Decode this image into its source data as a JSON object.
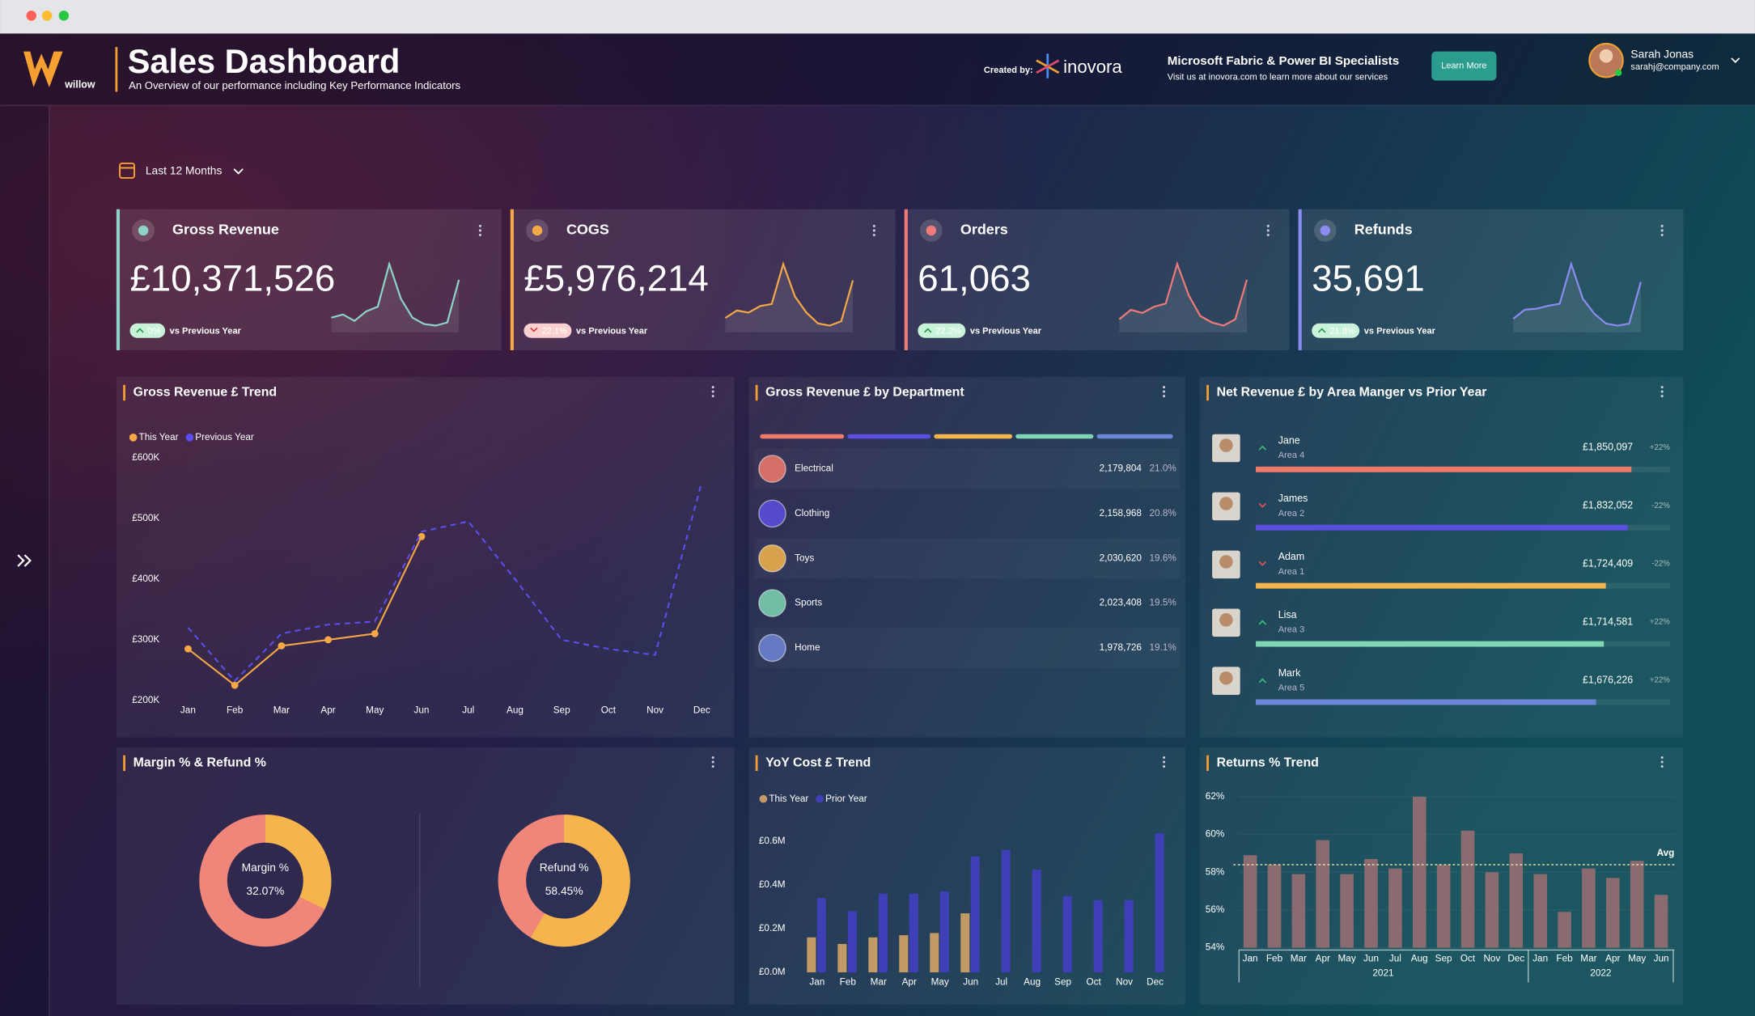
{
  "header": {
    "logo_text": "willow",
    "title": "Sales Dashboard",
    "subtitle": "An Overview of our performance including Key Performance Indicators",
    "created_by": "Created by:",
    "brand": "inovora",
    "promo_title": "Microsoft Fabric & Power BI Specialists",
    "promo_text": "Visit us at inovora.com to learn more about our services",
    "button": "Learn More",
    "user_name": "Sarah Jonas",
    "user_email": "sarahj@company.com"
  },
  "filter": "Last 12 Months",
  "kpis": [
    {
      "title": "Gross Revenue",
      "value": "£10,371,526",
      "change": "0%",
      "trend": "up",
      "note": "vs Previous Year",
      "color": "#8fd3c8",
      "spark": [
        38,
        40,
        36,
        42,
        45,
        72,
        50,
        38,
        34,
        33,
        35,
        62
      ]
    },
    {
      "title": "COGS",
      "value": "£5,976,214",
      "change": "22.1%",
      "trend": "down",
      "note": "vs Previous Year",
      "color": "#f5a845",
      "spark": [
        35,
        42,
        40,
        46,
        48,
        85,
        55,
        40,
        30,
        28,
        32,
        70
      ]
    },
    {
      "title": "Orders",
      "value": "61,063",
      "change": "22.2%",
      "trend": "up",
      "note": "vs Previous Year",
      "color": "#f07a7a",
      "spark": [
        30,
        36,
        34,
        38,
        40,
        65,
        45,
        32,
        28,
        26,
        30,
        55
      ]
    },
    {
      "title": "Refunds",
      "value": "35,691",
      "change": "21.8%",
      "trend": "up",
      "note": "vs Previous Year",
      "color": "#8b8cf0",
      "spark": [
        35,
        44,
        45,
        48,
        50,
        90,
        55,
        40,
        30,
        28,
        30,
        72
      ]
    }
  ],
  "chart_data": [
    {
      "type": "line",
      "title": "Gross Revenue £ Trend",
      "categories": [
        "Jan",
        "Feb",
        "Mar",
        "Apr",
        "May",
        "Jun",
        "Jul",
        "Aug",
        "Sep",
        "Oct",
        "Nov",
        "Dec"
      ],
      "series": [
        {
          "name": "This Year",
          "color": "#f5a845",
          "style": "solid",
          "markers": true,
          "values": [
            285000,
            225000,
            290000,
            300000,
            310000,
            470000,
            null,
            null,
            null,
            null,
            null,
            null
          ]
        },
        {
          "name": "Previous Year",
          "color": "#5b4ff0",
          "style": "dashed",
          "markers": false,
          "values": [
            320000,
            232000,
            310000,
            325000,
            330000,
            478000,
            495000,
            400000,
            300000,
            285000,
            275000,
            560000
          ]
        }
      ],
      "ylim": [
        200000,
        600000
      ],
      "yticks": [
        {
          "value": 200000,
          "label": "£200K"
        },
        {
          "value": 300000,
          "label": "£300K"
        },
        {
          "value": 400000,
          "label": "£400K"
        },
        {
          "value": 500000,
          "label": "£500K"
        },
        {
          "value": 600000,
          "label": "£600K"
        }
      ]
    },
    {
      "type": "list",
      "title": "Gross Revenue £ by Department",
      "categories": [
        "Electrical",
        "Clothing",
        "Toys",
        "Sports",
        "Home"
      ],
      "values": [
        2179804,
        2158968,
        2030620,
        2023408,
        1978726
      ],
      "value_labels": [
        "2,179,804",
        "2,158,968",
        "2,030,620",
        "2,023,408",
        "1,978,726"
      ],
      "shares": [
        21.0,
        20.8,
        19.6,
        19.5,
        19.1
      ],
      "share_labels": [
        "21.0%",
        "20.8%",
        "19.6%",
        "19.5%",
        "19.1%"
      ],
      "colors": [
        "#f07a6a",
        "#5a4fe0",
        "#f5b54c",
        "#7fd6b5",
        "#6e86d6"
      ]
    },
    {
      "type": "hbar",
      "title": "Net Revenue £ by Area Manger vs Prior Year",
      "categories": [
        "Jane",
        "James",
        "Adam",
        "Lisa",
        "Mark"
      ],
      "areas": [
        "Area 4",
        "Area 2",
        "Area 1",
        "Area 3",
        "Area 5"
      ],
      "values": [
        1850097,
        1832052,
        1724409,
        1714581,
        1676226
      ],
      "value_labels": [
        "£1,850,097",
        "£1,832,052",
        "£1,724,409",
        "£1,714,581",
        "£1,676,226"
      ],
      "changes": [
        "+22%",
        "-22%",
        "-22%",
        "+22%",
        "+22%"
      ],
      "trends": [
        "up",
        "down",
        "down",
        "up",
        "up"
      ],
      "colors": [
        "#f07a6a",
        "#5a4fe0",
        "#f5b54c",
        "#7fd6b5",
        "#6e86d6"
      ],
      "xlim": [
        0,
        2040000
      ]
    },
    {
      "type": "donut",
      "title": "Margin % & Refund %",
      "categories": [
        "Margin %",
        "Refund %"
      ],
      "values": [
        32.07,
        58.45
      ],
      "value_labels": [
        "32.07%",
        "58.45%"
      ],
      "color": "#f5b54c",
      "track_color": "#f0857a"
    },
    {
      "type": "bar",
      "title": "YoY Cost £ Trend",
      "categories": [
        "Jan",
        "Feb",
        "Mar",
        "Apr",
        "May",
        "Jun",
        "Jul",
        "Aug",
        "Sep",
        "Oct",
        "Nov",
        "Dec"
      ],
      "series": [
        {
          "name": "This Year",
          "color": "#c29a66",
          "values": [
            160000,
            130000,
            160000,
            170000,
            180000,
            270000,
            null,
            null,
            null,
            null,
            null,
            null
          ]
        },
        {
          "name": "Prior Year",
          "color": "#3f3fb8",
          "values": [
            340000,
            280000,
            360000,
            360000,
            370000,
            530000,
            560000,
            470000,
            350000,
            330000,
            330000,
            636000
          ]
        }
      ],
      "ylim": [
        0,
        640000
      ],
      "yticks": [
        {
          "value": 0,
          "label": "£0.0M"
        },
        {
          "value": 200000,
          "label": "£0.2M"
        },
        {
          "value": 400000,
          "label": "£0.4M"
        },
        {
          "value": 600000,
          "label": "£0.6M"
        }
      ]
    },
    {
      "type": "grouped-bar",
      "title": "Returns % Trend",
      "groups": [
        {
          "name": "2021",
          "categories": [
            "Jan",
            "Feb",
            "Mar",
            "Apr",
            "May",
            "Jun",
            "Jul",
            "Aug",
            "Sep",
            "Oct",
            "Nov",
            "Dec"
          ],
          "values": [
            58.9,
            58.4,
            57.9,
            59.7,
            57.9,
            58.7,
            58.2,
            62.0,
            58.4,
            60.2,
            58.0,
            59.0
          ]
        },
        {
          "name": "2022",
          "categories": [
            "Jan",
            "Feb",
            "Mar",
            "Apr",
            "May",
            "Jun"
          ],
          "values": [
            57.9,
            55.9,
            58.2,
            57.7,
            58.6,
            56.8
          ]
        }
      ],
      "color": "#8a6b70",
      "average": 58.4,
      "average_label": "Avg",
      "ylim": [
        54,
        62
      ],
      "yticks": [
        {
          "value": 54,
          "label": "54%"
        },
        {
          "value": 56,
          "label": "56%"
        },
        {
          "value": 58,
          "label": "58%"
        },
        {
          "value": 60,
          "label": "60%"
        },
        {
          "value": 62,
          "label": "62%"
        }
      ]
    }
  ]
}
